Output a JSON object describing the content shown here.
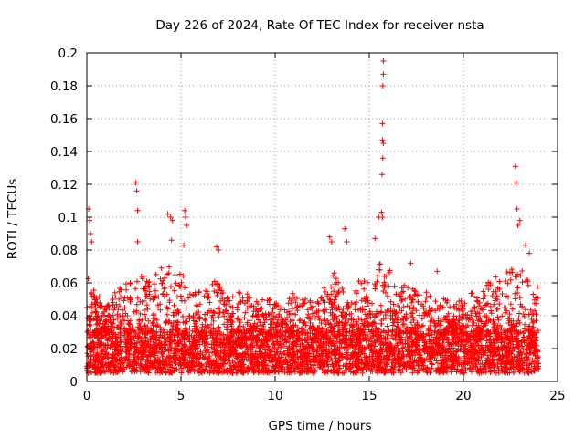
{
  "chart_data": {
    "type": "scatter",
    "title": "Day 226 of 2024, Rate Of TEC Index for receiver nsta",
    "xlabel": "GPS time / hours",
    "ylabel": "ROTI / TECUs",
    "xlim": [
      0,
      25
    ],
    "ylim": [
      0,
      0.2
    ],
    "xticks": [
      0,
      5,
      10,
      15,
      20,
      25
    ],
    "xtick_labels": [
      "0",
      "5",
      "10",
      "15",
      "20",
      "25"
    ],
    "yticks": [
      0,
      0.02,
      0.04,
      0.06,
      0.08,
      0.1,
      0.12,
      0.14,
      0.16,
      0.18,
      0.2
    ],
    "ytick_labels": [
      "0",
      "0.02",
      "0.04",
      "0.06",
      "0.08",
      "0.1",
      "0.12",
      "0.14",
      "0.16",
      "0.18",
      "0.2"
    ],
    "grid": true,
    "marker": "+",
    "color": "#ff0000",
    "series": [
      {
        "name": "ROTI",
        "notable_points": [
          {
            "x": 0.1,
            "y": 0.105
          },
          {
            "x": 0.15,
            "y": 0.098
          },
          {
            "x": 0.2,
            "y": 0.09
          },
          {
            "x": 0.25,
            "y": 0.085
          },
          {
            "x": 2.6,
            "y": 0.121
          },
          {
            "x": 2.65,
            "y": 0.116
          },
          {
            "x": 2.7,
            "y": 0.104
          },
          {
            "x": 2.7,
            "y": 0.085
          },
          {
            "x": 4.3,
            "y": 0.102
          },
          {
            "x": 4.45,
            "y": 0.1
          },
          {
            "x": 4.55,
            "y": 0.098
          },
          {
            "x": 4.5,
            "y": 0.086
          },
          {
            "x": 5.2,
            "y": 0.104
          },
          {
            "x": 5.25,
            "y": 0.1
          },
          {
            "x": 5.3,
            "y": 0.095
          },
          {
            "x": 5.15,
            "y": 0.083
          },
          {
            "x": 6.9,
            "y": 0.082
          },
          {
            "x": 7.0,
            "y": 0.08
          },
          {
            "x": 12.9,
            "y": 0.088
          },
          {
            "x": 13.0,
            "y": 0.085
          },
          {
            "x": 13.7,
            "y": 0.093
          },
          {
            "x": 13.8,
            "y": 0.085
          },
          {
            "x": 15.3,
            "y": 0.087
          },
          {
            "x": 15.5,
            "y": 0.1
          },
          {
            "x": 15.75,
            "y": 0.195
          },
          {
            "x": 15.75,
            "y": 0.187
          },
          {
            "x": 15.72,
            "y": 0.18
          },
          {
            "x": 15.7,
            "y": 0.157
          },
          {
            "x": 15.7,
            "y": 0.147
          },
          {
            "x": 15.75,
            "y": 0.145
          },
          {
            "x": 15.72,
            "y": 0.136
          },
          {
            "x": 15.68,
            "y": 0.126
          },
          {
            "x": 15.65,
            "y": 0.103
          },
          {
            "x": 15.7,
            "y": 0.1
          },
          {
            "x": 17.2,
            "y": 0.072
          },
          {
            "x": 18.6,
            "y": 0.067
          },
          {
            "x": 22.75,
            "y": 0.131
          },
          {
            "x": 22.8,
            "y": 0.121
          },
          {
            "x": 22.85,
            "y": 0.105
          },
          {
            "x": 23.0,
            "y": 0.098
          },
          {
            "x": 22.9,
            "y": 0.095
          },
          {
            "x": 23.3,
            "y": 0.083
          },
          {
            "x": 23.5,
            "y": 0.078
          }
        ],
        "envelope": [
          {
            "x": 0.0,
            "y": 0.065
          },
          {
            "x": 0.5,
            "y": 0.055
          },
          {
            "x": 1.0,
            "y": 0.045
          },
          {
            "x": 1.5,
            "y": 0.055
          },
          {
            "x": 2.0,
            "y": 0.06
          },
          {
            "x": 2.5,
            "y": 0.06
          },
          {
            "x": 3.0,
            "y": 0.065
          },
          {
            "x": 3.5,
            "y": 0.06
          },
          {
            "x": 4.0,
            "y": 0.075
          },
          {
            "x": 4.5,
            "y": 0.07
          },
          {
            "x": 5.0,
            "y": 0.07
          },
          {
            "x": 5.5,
            "y": 0.055
          },
          {
            "x": 6.0,
            "y": 0.055
          },
          {
            "x": 6.5,
            "y": 0.06
          },
          {
            "x": 7.0,
            "y": 0.065
          },
          {
            "x": 7.5,
            "y": 0.05
          },
          {
            "x": 8.0,
            "y": 0.055
          },
          {
            "x": 8.5,
            "y": 0.055
          },
          {
            "x": 9.0,
            "y": 0.05
          },
          {
            "x": 9.5,
            "y": 0.05
          },
          {
            "x": 10.0,
            "y": 0.05
          },
          {
            "x": 10.5,
            "y": 0.05
          },
          {
            "x": 11.0,
            "y": 0.055
          },
          {
            "x": 11.5,
            "y": 0.055
          },
          {
            "x": 12.0,
            "y": 0.05
          },
          {
            "x": 12.5,
            "y": 0.055
          },
          {
            "x": 13.0,
            "y": 0.07
          },
          {
            "x": 13.5,
            "y": 0.06
          },
          {
            "x": 14.0,
            "y": 0.05
          },
          {
            "x": 14.5,
            "y": 0.065
          },
          {
            "x": 15.0,
            "y": 0.06
          },
          {
            "x": 15.5,
            "y": 0.075
          },
          {
            "x": 16.0,
            "y": 0.07
          },
          {
            "x": 16.5,
            "y": 0.055
          },
          {
            "x": 17.0,
            "y": 0.06
          },
          {
            "x": 17.5,
            "y": 0.055
          },
          {
            "x": 18.0,
            "y": 0.055
          },
          {
            "x": 18.5,
            "y": 0.055
          },
          {
            "x": 19.0,
            "y": 0.05
          },
          {
            "x": 19.5,
            "y": 0.05
          },
          {
            "x": 20.0,
            "y": 0.05
          },
          {
            "x": 20.5,
            "y": 0.055
          },
          {
            "x": 21.0,
            "y": 0.055
          },
          {
            "x": 21.5,
            "y": 0.065
          },
          {
            "x": 22.0,
            "y": 0.065
          },
          {
            "x": 22.5,
            "y": 0.07
          },
          {
            "x": 23.0,
            "y": 0.07
          },
          {
            "x": 23.5,
            "y": 0.065
          },
          {
            "x": 24.0,
            "y": 0.06
          }
        ],
        "baseline_range": [
          0.005,
          0.03
        ],
        "x_range": [
          0,
          24
        ]
      }
    ]
  }
}
